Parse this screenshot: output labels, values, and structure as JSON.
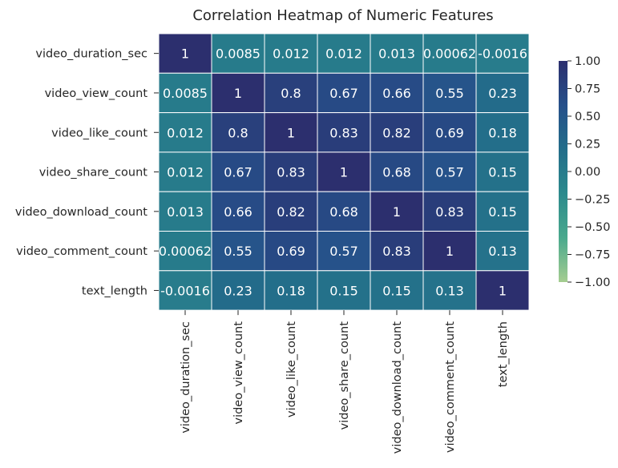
{
  "chart_data": {
    "type": "heatmap",
    "title": "Correlation Heatmap of Numeric Features",
    "xlabel": "",
    "ylabel": "",
    "grid": true,
    "annotated": true,
    "colormap": "crest",
    "colormap_stops": [
      "#a5cd90",
      "#4aa98d",
      "#2c8a8d",
      "#236d8a",
      "#26508a",
      "#2c2f6e"
    ],
    "vmin": -1.0,
    "vmax": 1.0,
    "legend_position": "right",
    "colorbar_ticks": [
      "1.00",
      "0.75",
      "0.50",
      "0.25",
      "0.00",
      "−0.25",
      "−0.50",
      "−0.75",
      "−1.00"
    ],
    "colorbar_tick_values": [
      1.0,
      0.75,
      0.5,
      0.25,
      0.0,
      -0.25,
      -0.5,
      -0.75,
      -1.0
    ],
    "row_labels": [
      "video_duration_sec",
      "video_view_count",
      "video_like_count",
      "video_share_count",
      "video_download_count",
      "video_comment_count",
      "text_length"
    ],
    "col_labels": [
      "video_duration_sec",
      "video_view_count",
      "video_like_count",
      "video_share_count",
      "video_download_count",
      "video_comment_count",
      "text_length"
    ],
    "values": [
      [
        1,
        0.0085,
        0.012,
        0.012,
        0.013,
        0.00062,
        -0.0016
      ],
      [
        0.0085,
        1,
        0.8,
        0.67,
        0.66,
        0.55,
        0.23
      ],
      [
        0.012,
        0.8,
        1,
        0.83,
        0.82,
        0.69,
        0.18
      ],
      [
        0.012,
        0.67,
        0.83,
        1,
        0.68,
        0.57,
        0.15
      ],
      [
        0.013,
        0.66,
        0.82,
        0.68,
        1,
        0.83,
        0.15
      ],
      [
        0.00062,
        0.55,
        0.69,
        0.57,
        0.83,
        1,
        0.13
      ],
      [
        -0.0016,
        0.23,
        0.18,
        0.15,
        0.15,
        0.13,
        1
      ]
    ],
    "cell_labels": [
      [
        "1",
        "0.0085",
        "0.012",
        "0.012",
        "0.013",
        "0.00062",
        "-0.0016"
      ],
      [
        "0.0085",
        "1",
        "0.8",
        "0.67",
        "0.66",
        "0.55",
        "0.23"
      ],
      [
        "0.012",
        "0.8",
        "1",
        "0.83",
        "0.82",
        "0.69",
        "0.18"
      ],
      [
        "0.012",
        "0.67",
        "0.83",
        "1",
        "0.68",
        "0.57",
        "0.15"
      ],
      [
        "0.013",
        "0.66",
        "0.82",
        "0.68",
        "1",
        "0.83",
        "0.15"
      ],
      [
        "0.00062",
        "0.55",
        "0.69",
        "0.57",
        "0.83",
        "1",
        "0.13"
      ],
      [
        "-0.0016",
        "0.23",
        "0.18",
        "0.15",
        "0.15",
        "0.13",
        "1"
      ]
    ]
  }
}
